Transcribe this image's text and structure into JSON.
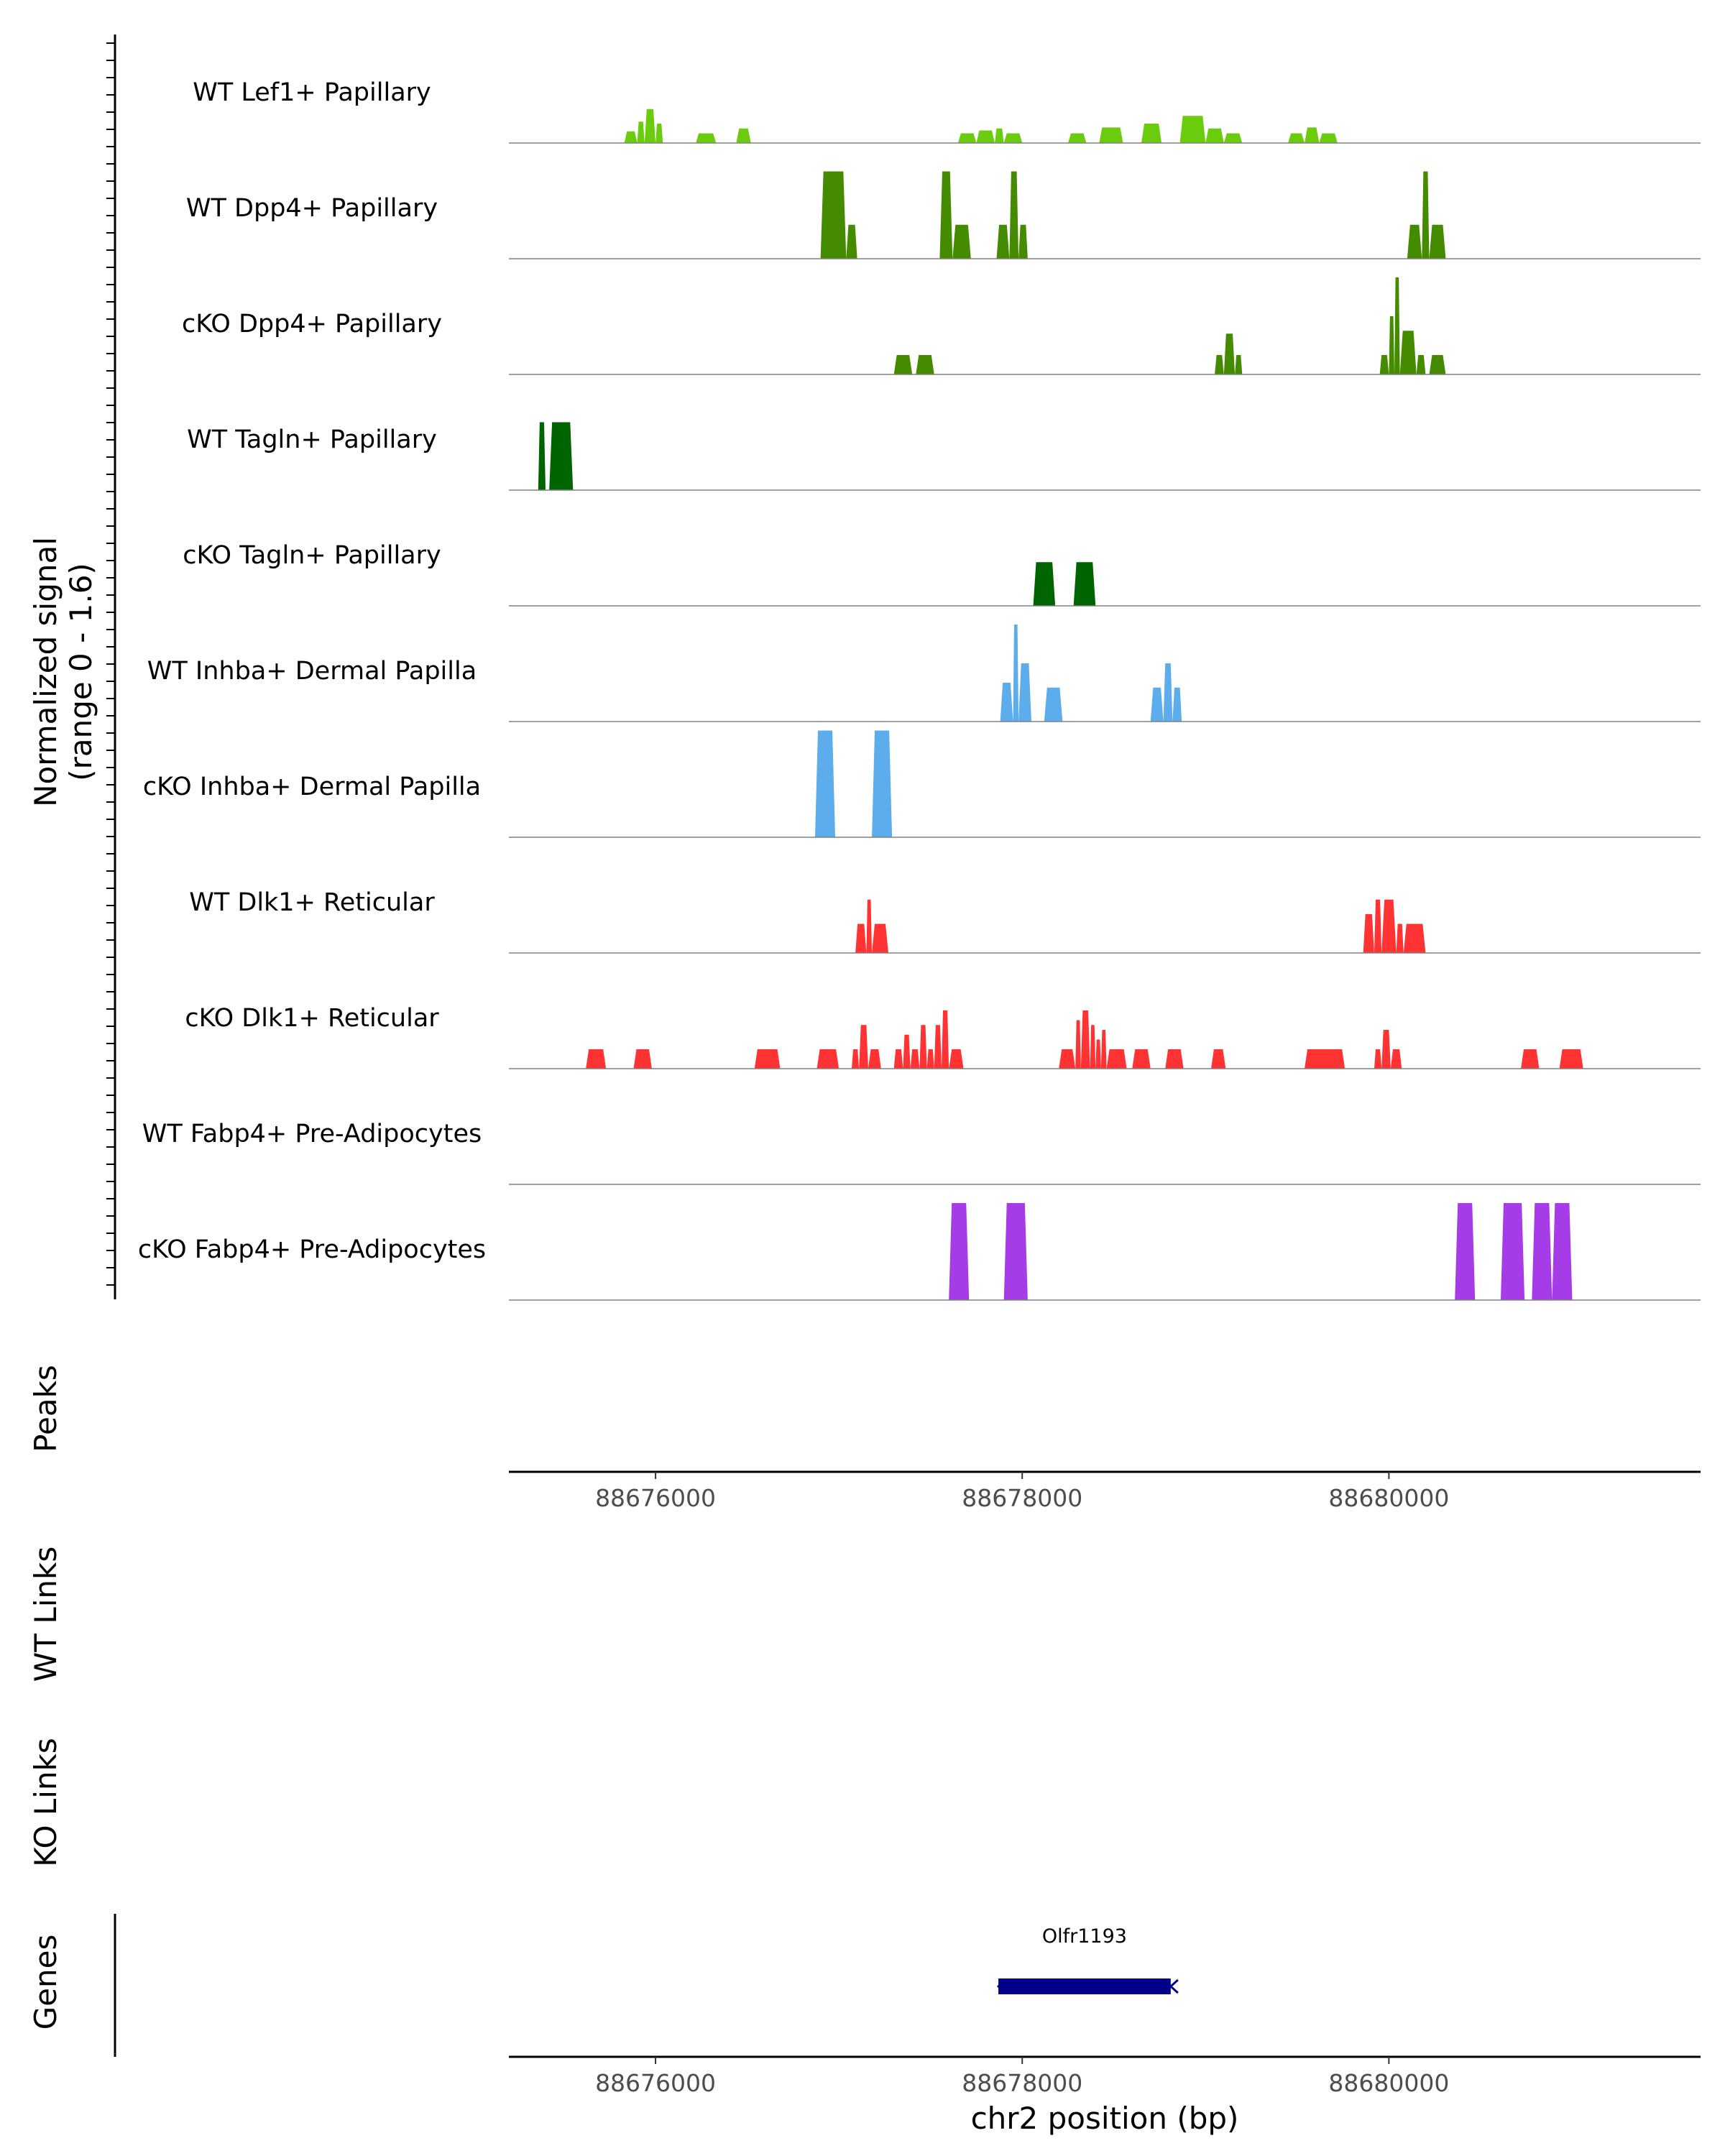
{
  "chart_data": {
    "type": "area",
    "title": "",
    "chromosome": "chr2",
    "xlim": [
      88675200,
      88681700
    ],
    "signal_ylabel": [
      "Normalized signal",
      "(range 0 - 1.6)"
    ],
    "signal_range": [
      0,
      1.6
    ],
    "x_ticks": [
      88676000,
      88678000,
      88680000
    ],
    "x_tick_labels": [
      "88676000",
      "88678000",
      "88680000"
    ],
    "xlabel": "chr2 position (bp)",
    "panel_labels": {
      "peaks": "Peaks",
      "wt_links": "WT Links",
      "ko_links": "KO Links",
      "genes": "Genes"
    },
    "tracks": [
      {
        "name": "WT Lef1+ Papillary",
        "color": "#6ACC0D",
        "peaks": [
          [
            88675830,
            88675900,
            0.12
          ],
          [
            88675900,
            88675940,
            0.22
          ],
          [
            88675940,
            88676000,
            0.35
          ],
          [
            88676000,
            88676040,
            0.2
          ],
          [
            88676220,
            88676330,
            0.1
          ],
          [
            88676440,
            88676520,
            0.15
          ],
          [
            88677650,
            88677750,
            0.1
          ],
          [
            88677750,
            88677850,
            0.13
          ],
          [
            88677850,
            88677900,
            0.15
          ],
          [
            88677900,
            88678000,
            0.1
          ],
          [
            88678250,
            88678350,
            0.1
          ],
          [
            88678420,
            88678550,
            0.16
          ],
          [
            88678650,
            88678760,
            0.2
          ],
          [
            88678860,
            88679000,
            0.28
          ],
          [
            88679000,
            88679100,
            0.15
          ],
          [
            88679100,
            88679200,
            0.1
          ],
          [
            88679450,
            88679540,
            0.1
          ],
          [
            88679540,
            88679620,
            0.16
          ],
          [
            88679620,
            88679720,
            0.1
          ]
        ]
      },
      {
        "name": "WT Dpp4+ Papillary",
        "color": "#458B00",
        "peaks": [
          [
            88676900,
            88677040,
            0.9
          ],
          [
            88677040,
            88677100,
            0.35
          ],
          [
            88677550,
            88677620,
            0.9
          ],
          [
            88677620,
            88677720,
            0.35
          ],
          [
            88677860,
            88677930,
            0.35
          ],
          [
            88677930,
            88677980,
            0.9
          ],
          [
            88677980,
            88678030,
            0.35
          ],
          [
            88680100,
            88680180,
            0.35
          ],
          [
            88680180,
            88680220,
            0.9
          ],
          [
            88680220,
            88680310,
            0.35
          ]
        ]
      },
      {
        "name": "cKO Dpp4+ Papillary",
        "color": "#458B00",
        "peaks": [
          [
            88677300,
            88677400,
            0.2
          ],
          [
            88677420,
            88677520,
            0.2
          ],
          [
            88679050,
            88679100,
            0.2
          ],
          [
            88679100,
            88679160,
            0.42
          ],
          [
            88679160,
            88679200,
            0.2
          ],
          [
            88679950,
            88680000,
            0.2
          ],
          [
            88680000,
            88680030,
            0.6
          ],
          [
            88680030,
            88680060,
            1.0
          ],
          [
            88680060,
            88680150,
            0.45
          ],
          [
            88680150,
            88680200,
            0.2
          ],
          [
            88680220,
            88680310,
            0.2
          ]
        ]
      },
      {
        "name": "WT Tagln+ Papillary",
        "color": "#006400",
        "peaks": [
          [
            88675360,
            88675400,
            0.7
          ],
          [
            88675420,
            88675550,
            0.7
          ]
        ]
      },
      {
        "name": "cKO Tagln+ Papillary",
        "color": "#006400",
        "peaks": [
          [
            88678060,
            88678180,
            0.45
          ],
          [
            88678280,
            88678400,
            0.45
          ]
        ]
      },
      {
        "name": "WT Inhba+ Dermal Papilla",
        "color": "#5DADEC",
        "peaks": [
          [
            88677880,
            88677950,
            0.4
          ],
          [
            88677950,
            88677980,
            1.0
          ],
          [
            88677980,
            88678050,
            0.6
          ],
          [
            88678120,
            88678220,
            0.35
          ],
          [
            88678700,
            88678770,
            0.35
          ],
          [
            88678770,
            88678820,
            0.6
          ],
          [
            88678820,
            88678870,
            0.35
          ]
        ]
      },
      {
        "name": "cKO Inhba+ Dermal Papilla",
        "color": "#5DADEC",
        "peaks": [
          [
            88676870,
            88676980,
            1.1
          ],
          [
            88677180,
            88677290,
            1.1
          ]
        ]
      },
      {
        "name": "WT Dlk1+ Reticular",
        "color": "#FF3333",
        "peaks": [
          [
            88677090,
            88677150,
            0.3
          ],
          [
            88677150,
            88677180,
            0.55
          ],
          [
            88677180,
            88677270,
            0.3
          ],
          [
            88679860,
            88679920,
            0.4
          ],
          [
            88679920,
            88679960,
            0.55
          ],
          [
            88679960,
            88680040,
            0.55
          ],
          [
            88680040,
            88680080,
            0.3
          ],
          [
            88680080,
            88680200,
            0.3
          ]
        ]
      },
      {
        "name": "cKO Dlk1+ Reticular",
        "color": "#FF3333",
        "peaks": [
          [
            88675620,
            88675730,
            0.2
          ],
          [
            88675880,
            88675980,
            0.2
          ],
          [
            88676540,
            88676680,
            0.2
          ],
          [
            88676880,
            88677000,
            0.2
          ],
          [
            88677070,
            88677110,
            0.2
          ],
          [
            88677110,
            88677160,
            0.45
          ],
          [
            88677160,
            88677230,
            0.2
          ],
          [
            88677300,
            88677350,
            0.2
          ],
          [
            88677350,
            88677390,
            0.35
          ],
          [
            88677390,
            88677440,
            0.2
          ],
          [
            88677440,
            88677480,
            0.45
          ],
          [
            88677480,
            88677520,
            0.2
          ],
          [
            88677520,
            88677560,
            0.45
          ],
          [
            88677560,
            88677600,
            0.6
          ],
          [
            88677600,
            88677680,
            0.2
          ],
          [
            88678200,
            88678290,
            0.2
          ],
          [
            88678290,
            88678320,
            0.5
          ],
          [
            88678320,
            88678370,
            0.6
          ],
          [
            88678370,
            88678400,
            0.45
          ],
          [
            88678400,
            88678430,
            0.3
          ],
          [
            88678430,
            88678460,
            0.4
          ],
          [
            88678460,
            88678570,
            0.2
          ],
          [
            88678600,
            88678700,
            0.2
          ],
          [
            88678780,
            88678880,
            0.2
          ],
          [
            88679030,
            88679110,
            0.2
          ],
          [
            88679540,
            88679760,
            0.2
          ],
          [
            88679920,
            88679960,
            0.2
          ],
          [
            88679960,
            88680010,
            0.4
          ],
          [
            88680010,
            88680070,
            0.2
          ],
          [
            88680720,
            88680820,
            0.2
          ],
          [
            88680930,
            88681060,
            0.2
          ]
        ]
      },
      {
        "name": "WT Fabp4+ Pre-Adipocytes",
        "color": "#A63CE8",
        "peaks": []
      },
      {
        "name": "cKO Fabp4+ Pre-Adipocytes",
        "color": "#A63CE8",
        "peaks": [
          [
            88677600,
            88677710,
            1.0
          ],
          [
            88677900,
            88678030,
            1.0
          ],
          [
            88680360,
            88680470,
            1.0
          ],
          [
            88680610,
            88680740,
            1.0
          ],
          [
            88680780,
            88680890,
            1.0
          ],
          [
            88680890,
            88681000,
            1.0
          ]
        ]
      }
    ],
    "genes": [
      {
        "name": "Olfr1193",
        "start": 88677870,
        "end": 88678810,
        "strand": "-",
        "color": "#00008B"
      }
    ]
  }
}
